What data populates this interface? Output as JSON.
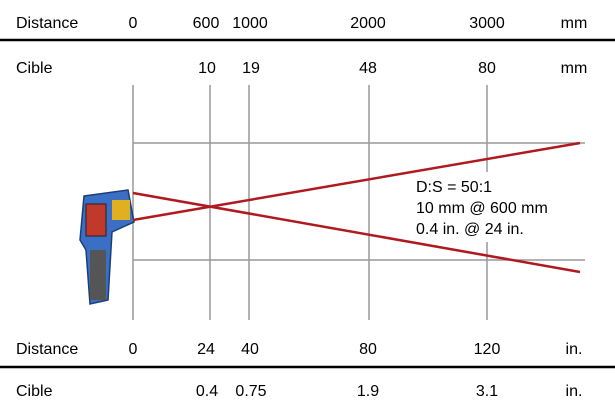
{
  "rows": [
    {
      "label": "Distance",
      "values": [
        "0",
        "600",
        "1000",
        "2000",
        "3000"
      ],
      "unit": "mm"
    },
    {
      "label": "Cible",
      "values": [
        "10",
        "19",
        "48",
        "80"
      ],
      "unit": "mm"
    },
    {
      "label": "Distance",
      "values": [
        "0",
        "24",
        "40",
        "80",
        "120"
      ],
      "unit": "in."
    },
    {
      "label": "Cible",
      "values": [
        "0.4",
        "0.75",
        "1.9",
        "3.1"
      ],
      "unit": "in."
    }
  ],
  "annotation": [
    "D:S = 50:1",
    "10 mm @ 600 mm",
    "0.4 in. @ 24 in."
  ]
}
